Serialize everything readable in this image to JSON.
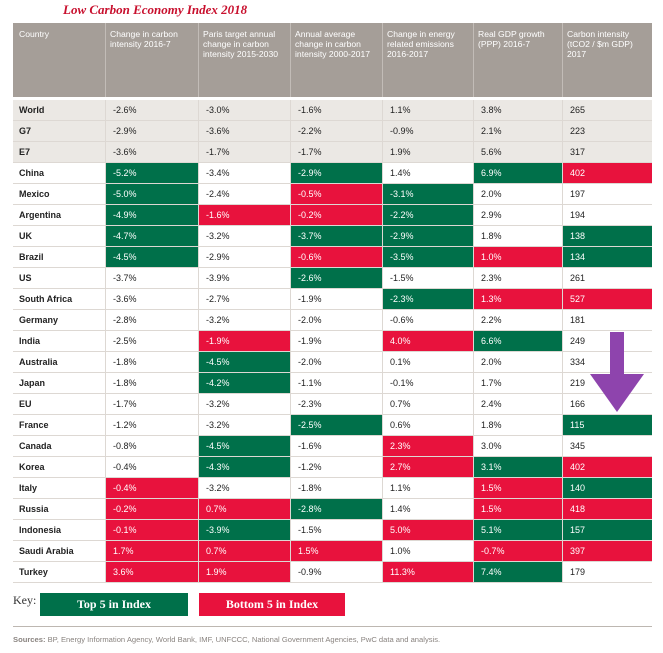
{
  "title": "Low Carbon Economy Index 2018",
  "headers": [
    "Country",
    "Change in carbon intensity 2016-7",
    "Paris target annual change in carbon intensity 2015-2030",
    "Annual average change in carbon intensity 2000-2017",
    "Change in energy related emissions 2016-2017",
    "Real GDP growth (PPP) 2016-7",
    "Carbon intensity (tCO2 / $m GDP) 2017"
  ],
  "rows": [
    {
      "cells": [
        "World",
        "-2.6%",
        "-3.0%",
        "-1.6%",
        "1.1%",
        "3.8%",
        "265"
      ],
      "colors": [
        "",
        "",
        "",
        "",
        "",
        "",
        ""
      ],
      "group": "gray"
    },
    {
      "cells": [
        "G7",
        "-2.9%",
        "-3.6%",
        "-2.2%",
        "-0.9%",
        "2.1%",
        "223"
      ],
      "colors": [
        "",
        "",
        "",
        "",
        "",
        "",
        ""
      ],
      "group": "gray"
    },
    {
      "cells": [
        "E7",
        "-3.6%",
        "-1.7%",
        "-1.7%",
        "1.9%",
        "5.6%",
        "317"
      ],
      "colors": [
        "",
        "",
        "",
        "",
        "",
        "",
        ""
      ],
      "group": "gray"
    },
    {
      "cells": [
        "China",
        "-5.2%",
        "-3.4%",
        "-2.9%",
        "1.4%",
        "6.9%",
        "402"
      ],
      "colors": [
        "",
        "g",
        "",
        "g",
        "",
        "g",
        "r"
      ],
      "group": ""
    },
    {
      "cells": [
        "Mexico",
        "-5.0%",
        "-2.4%",
        "-0.5%",
        "-3.1%",
        "2.0%",
        "197"
      ],
      "colors": [
        "",
        "g",
        "",
        "r",
        "g",
        "",
        ""
      ],
      "group": ""
    },
    {
      "cells": [
        "Argentina",
        "-4.9%",
        "-1.6%",
        "-0.2%",
        "-2.2%",
        "2.9%",
        "194"
      ],
      "colors": [
        "",
        "g",
        "r",
        "r",
        "g",
        "",
        ""
      ],
      "group": ""
    },
    {
      "cells": [
        "UK",
        "-4.7%",
        "-3.2%",
        "-3.7%",
        "-2.9%",
        "1.8%",
        "138"
      ],
      "colors": [
        "",
        "g",
        "",
        "g",
        "g",
        "",
        "g"
      ],
      "group": ""
    },
    {
      "cells": [
        "Brazil",
        "-4.5%",
        "-2.9%",
        "-0.6%",
        "-3.5%",
        "1.0%",
        "134"
      ],
      "colors": [
        "",
        "g",
        "",
        "r",
        "g",
        "r",
        "g"
      ],
      "group": ""
    },
    {
      "cells": [
        "US",
        "-3.7%",
        "-3.9%",
        "-2.6%",
        "-1.5%",
        "2.3%",
        "261"
      ],
      "colors": [
        "",
        "",
        "",
        "g",
        "",
        "",
        ""
      ],
      "group": ""
    },
    {
      "cells": [
        "South Africa",
        "-3.6%",
        "-2.7%",
        "-1.9%",
        "-2.3%",
        "1.3%",
        "527"
      ],
      "colors": [
        "",
        "",
        "",
        "",
        "g",
        "r",
        "r"
      ],
      "group": ""
    },
    {
      "cells": [
        "Germany",
        "-2.8%",
        "-3.2%",
        "-2.0%",
        "-0.6%",
        "2.2%",
        "181"
      ],
      "colors": [
        "",
        "",
        "",
        "",
        "",
        "",
        ""
      ],
      "group": ""
    },
    {
      "cells": [
        "India",
        "-2.5%",
        "-1.9%",
        "-1.9%",
        "4.0%",
        "6.6%",
        "249"
      ],
      "colors": [
        "",
        "",
        "r",
        "",
        "r",
        "g",
        ""
      ],
      "group": ""
    },
    {
      "cells": [
        "Australia",
        "-1.8%",
        "-4.5%",
        "-2.0%",
        "0.1%",
        "2.0%",
        "334"
      ],
      "colors": [
        "",
        "",
        "g",
        "",
        "",
        "",
        ""
      ],
      "group": ""
    },
    {
      "cells": [
        "Japan",
        "-1.8%",
        "-4.2%",
        "-1.1%",
        "-0.1%",
        "1.7%",
        "219"
      ],
      "colors": [
        "",
        "",
        "g",
        "",
        "",
        "",
        ""
      ],
      "group": ""
    },
    {
      "cells": [
        "EU",
        "-1.7%",
        "-3.2%",
        "-2.3%",
        "0.7%",
        "2.4%",
        "166"
      ],
      "colors": [
        "",
        "",
        "",
        "",
        "",
        "",
        ""
      ],
      "group": ""
    },
    {
      "cells": [
        "France",
        "-1.2%",
        "-3.2%",
        "-2.5%",
        "0.6%",
        "1.8%",
        "115"
      ],
      "colors": [
        "",
        "",
        "",
        "g",
        "",
        "",
        "g"
      ],
      "group": ""
    },
    {
      "cells": [
        "Canada",
        "-0.8%",
        "-4.5%",
        "-1.6%",
        "2.3%",
        "3.0%",
        "345"
      ],
      "colors": [
        "",
        "",
        "g",
        "",
        "r",
        "",
        ""
      ],
      "group": ""
    },
    {
      "cells": [
        "Korea",
        "-0.4%",
        "-4.3%",
        "-1.2%",
        "2.7%",
        "3.1%",
        "402"
      ],
      "colors": [
        "",
        "",
        "g",
        "",
        "r",
        "g",
        "r"
      ],
      "group": ""
    },
    {
      "cells": [
        "Italy",
        "-0.4%",
        "-3.2%",
        "-1.8%",
        "1.1%",
        "1.5%",
        "140"
      ],
      "colors": [
        "",
        "r",
        "",
        "",
        "",
        "r",
        "g"
      ],
      "group": ""
    },
    {
      "cells": [
        "Russia",
        "-0.2%",
        "0.7%",
        "-2.8%",
        "1.4%",
        "1.5%",
        "418"
      ],
      "colors": [
        "",
        "r",
        "r",
        "g",
        "",
        "r",
        "r"
      ],
      "group": ""
    },
    {
      "cells": [
        "Indonesia",
        "-0.1%",
        "-3.9%",
        "-1.5%",
        "5.0%",
        "5.1%",
        "157"
      ],
      "colors": [
        "",
        "r",
        "g",
        "",
        "r",
        "g",
        "g"
      ],
      "group": ""
    },
    {
      "cells": [
        "Saudi Arabia",
        "1.7%",
        "0.7%",
        "1.5%",
        "1.0%",
        "-0.7%",
        "397"
      ],
      "colors": [
        "",
        "r",
        "r",
        "r",
        "",
        "r",
        "r"
      ],
      "group": ""
    },
    {
      "cells": [
        "Turkey",
        "3.6%",
        "1.9%",
        "-0.9%",
        "11.3%",
        "7.4%",
        "179"
      ],
      "colors": [
        "",
        "r",
        "r",
        "",
        "r",
        "g",
        ""
      ],
      "group": ""
    }
  ],
  "key": {
    "label": "Key:",
    "top": "Top 5 in Index",
    "bottom": "Bottom 5 in Index"
  },
  "sources": {
    "label": "Sources:",
    "text": " BP, Energy Information Agency, World Bank, IMF, UNFCCC, National Government Agencies, PwC data and analysis."
  },
  "colors": {
    "green": "#00704a",
    "red": "#e8123d",
    "header": "#a59e98",
    "arrow": "#8e44ad"
  },
  "arrow_icon": "down-arrow-icon"
}
